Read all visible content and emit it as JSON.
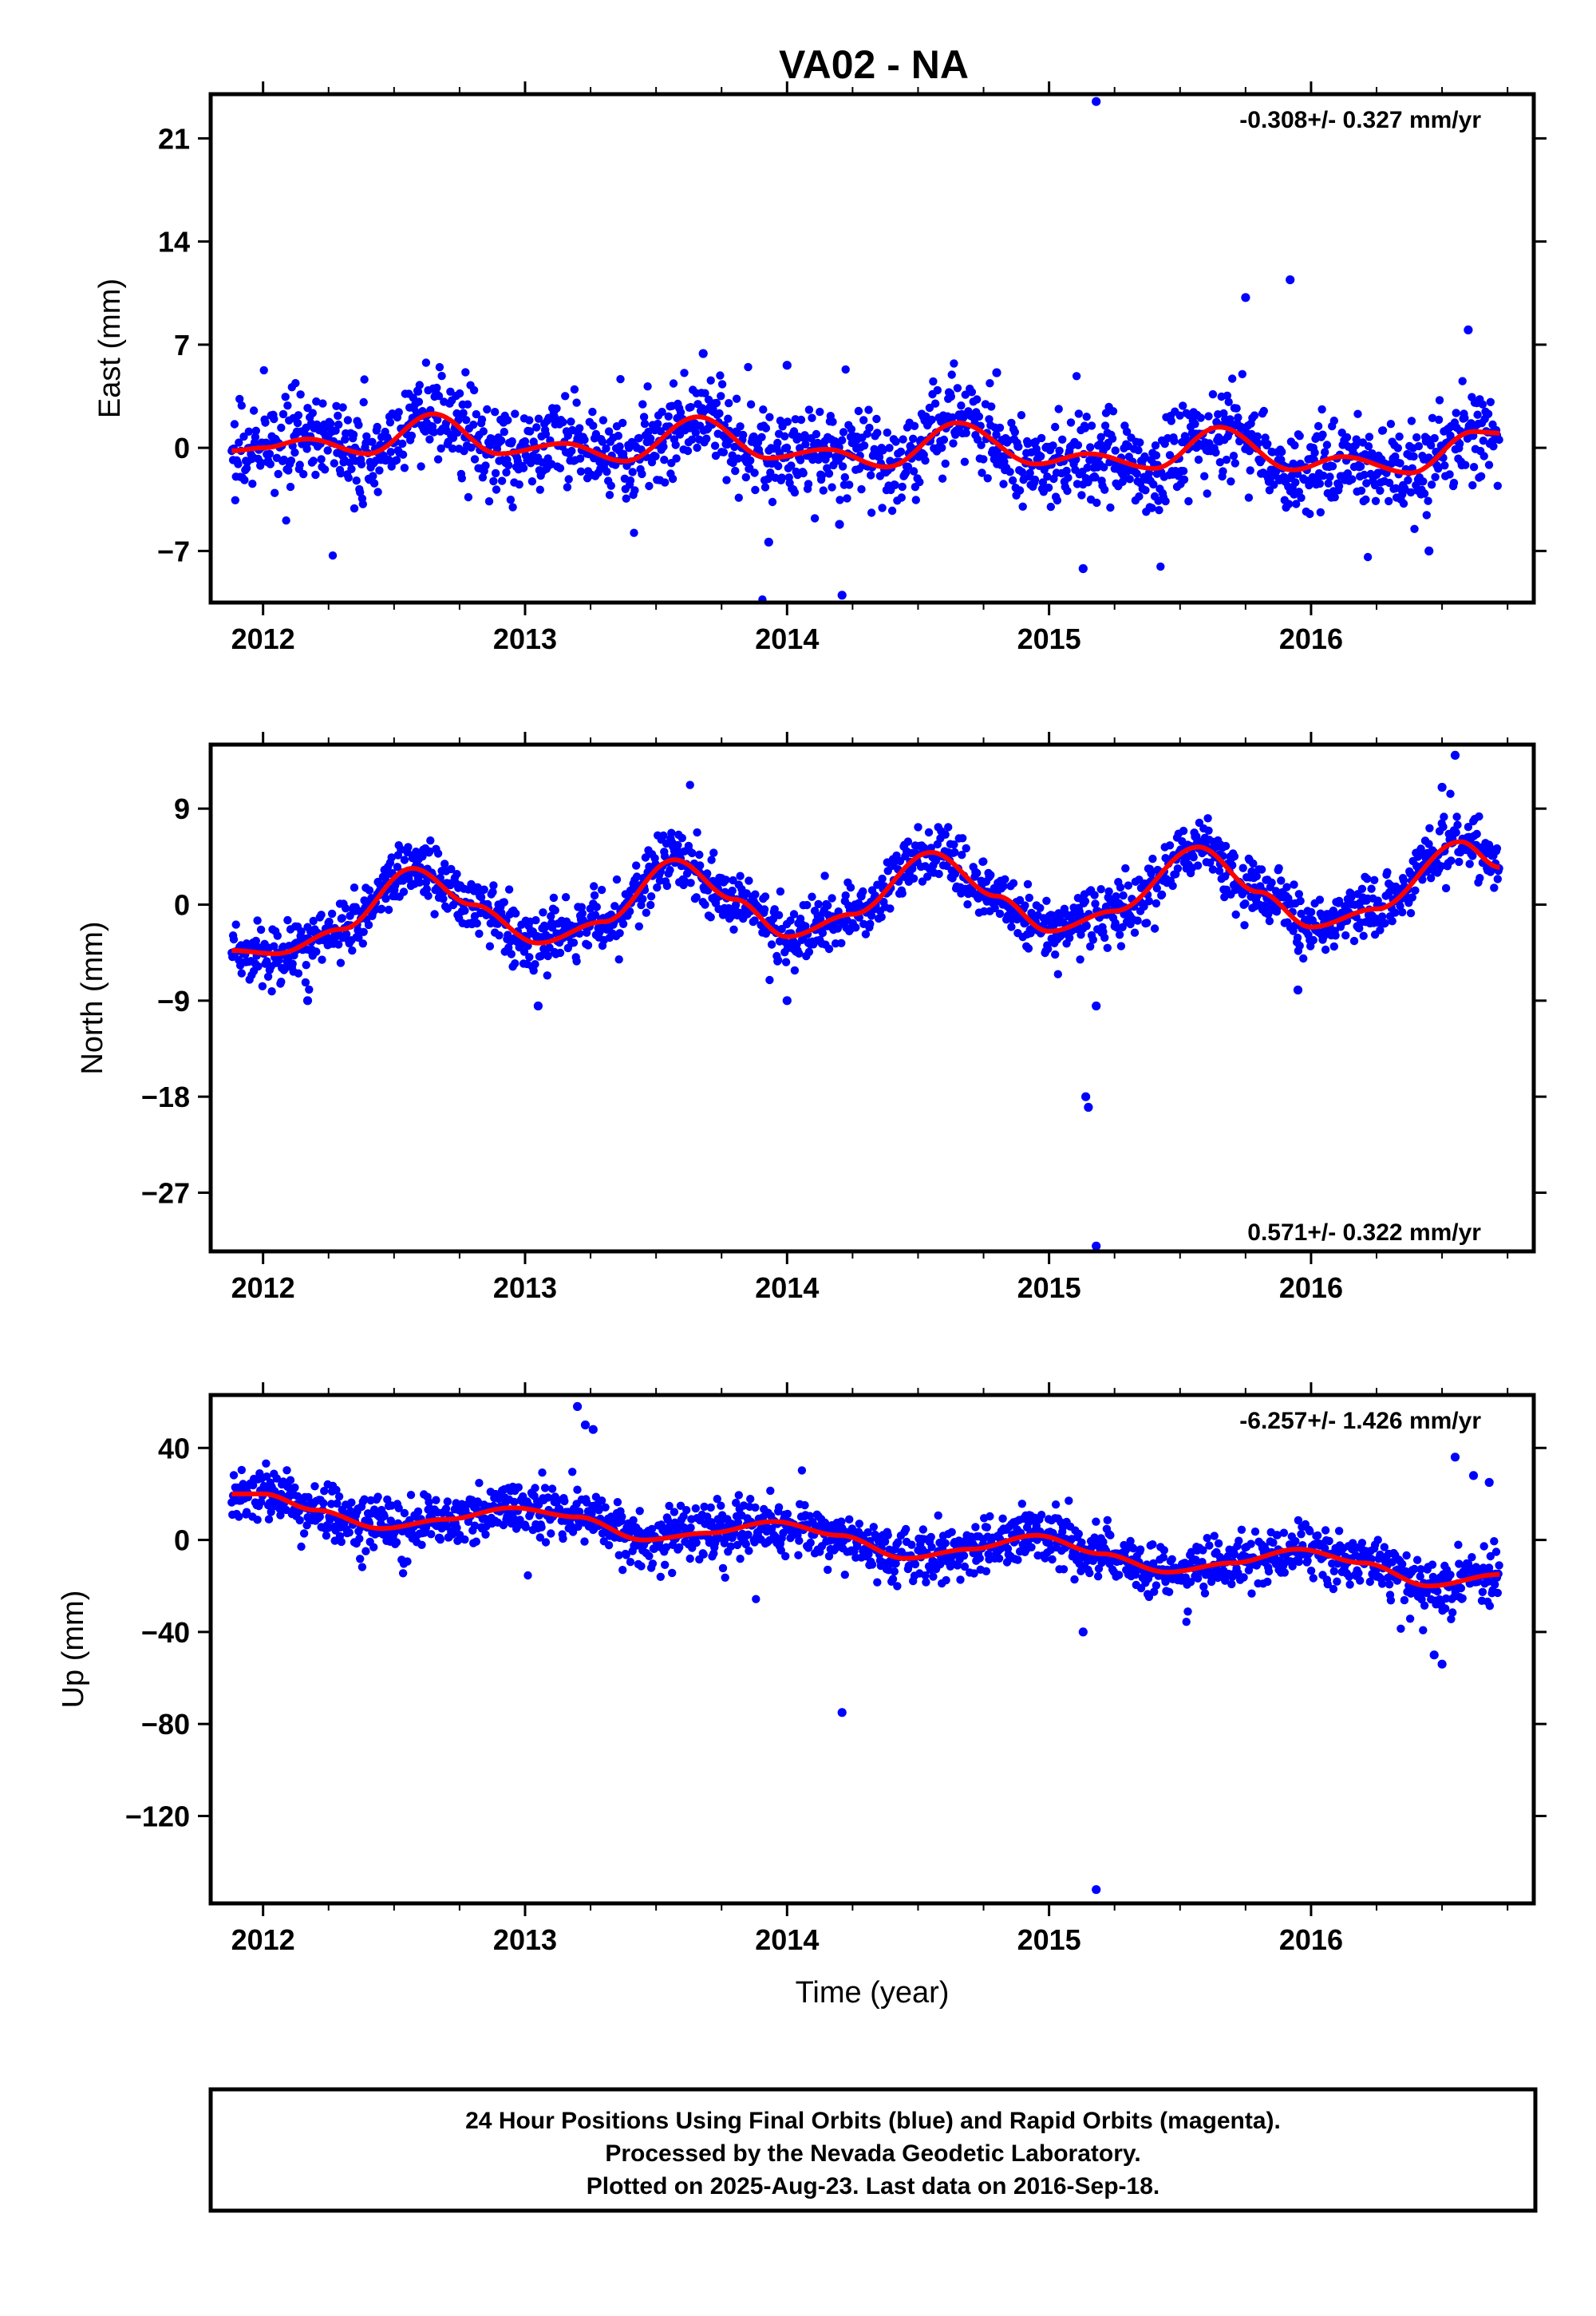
{
  "figure_title": "VA02 - NA",
  "footer": {
    "lines": [
      "24 Hour Positions Using Final Orbits (blue) and Rapid Orbits (magenta).",
      "Processed by the Nevada Geodetic Laboratory.",
      "Plotted on 2025-Aug-23. Last data on 2016-Sep-18."
    ]
  },
  "colors": {
    "final_orbits": "#0000ff",
    "model_fit": "#ff0000",
    "frame": "#000000"
  },
  "chart_data": [
    {
      "type": "scatter",
      "title": "",
      "xlabel": "",
      "ylabel": "East (mm)",
      "rate_text": "-0.308+/- 0.327 mm/yr",
      "rate_position": "top-right",
      "xlim": [
        2011.8,
        2016.85
      ],
      "ylim": [
        -10.5,
        24
      ],
      "xticks": [
        2012,
        2013,
        2014,
        2015,
        2016
      ],
      "xtick_labels": [
        "2012",
        "2013",
        "2014",
        "2015",
        "2016"
      ],
      "yticks": [
        -7,
        0,
        7,
        14,
        21
      ],
      "ytick_labels": [
        "−7",
        "0",
        "7",
        "14",
        "21"
      ],
      "grid": false,
      "data_range": [
        2011.88,
        2016.72
      ],
      "series": [
        {
          "kind": "daily-positions",
          "trend": -0.308,
          "intercept": 0.4,
          "annual_amp": 1.4,
          "annual_phase": 0.3,
          "semi_amp": 0.2,
          "semi_phase": 0.0,
          "noise_sd": 1.5,
          "outliers": [
            [
              2015.18,
              23.5
            ],
            [
              2015.92,
              11.4
            ],
            [
              2015.75,
              10.2
            ],
            [
              2014.21,
              -10.0
            ],
            [
              2015.13,
              -8.2
            ],
            [
              2013.93,
              -6.4
            ],
            [
              2016.45,
              -7.0
            ],
            [
              2014.2,
              -5.2
            ],
            [
              2016.6,
              8.0
            ],
            [
              2014.8,
              5.1
            ],
            [
              2013.68,
              6.4
            ],
            [
              2014.0,
              5.6
            ]
          ]
        },
        {
          "kind": "model-fit",
          "points": [
            [
              2011.88,
              -0.2
            ],
            [
              2012.0,
              0.0
            ],
            [
              2012.17,
              0.6
            ],
            [
              2012.4,
              -0.4
            ],
            [
              2012.65,
              2.3
            ],
            [
              2012.9,
              -0.4
            ],
            [
              2013.15,
              0.3
            ],
            [
              2013.38,
              -0.9
            ],
            [
              2013.66,
              2.1
            ],
            [
              2013.93,
              -0.7
            ],
            [
              2014.15,
              -0.1
            ],
            [
              2014.38,
              -1.3
            ],
            [
              2014.65,
              1.7
            ],
            [
              2014.95,
              -1.1
            ],
            [
              2015.15,
              -0.4
            ],
            [
              2015.4,
              -1.4
            ],
            [
              2015.65,
              1.4
            ],
            [
              2015.93,
              -1.5
            ],
            [
              2016.12,
              -0.6
            ],
            [
              2016.38,
              -1.7
            ],
            [
              2016.62,
              1.1
            ],
            [
              2016.72,
              1.0
            ]
          ]
        }
      ]
    },
    {
      "type": "scatter",
      "title": "",
      "xlabel": "",
      "ylabel": "North (mm)",
      "rate_text": "0.571+/- 0.322 mm/yr",
      "rate_position": "bottom-right",
      "xlim": [
        2011.8,
        2016.85
      ],
      "ylim": [
        -32.5,
        15
      ],
      "xticks": [
        2012,
        2013,
        2014,
        2015,
        2016
      ],
      "xtick_labels": [
        "2012",
        "2013",
        "2014",
        "2015",
        "2016"
      ],
      "yticks": [
        -27,
        -18,
        -9,
        0,
        9
      ],
      "ytick_labels": [
        "−27",
        "−18",
        "−9",
        "0",
        "9"
      ],
      "grid": false,
      "data_range": [
        2011.88,
        2016.72
      ],
      "series": [
        {
          "kind": "daily-positions",
          "trend": 0.571,
          "intercept": -0.8,
          "annual_amp": 4.2,
          "annual_phase": 0.32,
          "semi_amp": 0.0,
          "semi_phase": 0.0,
          "noise_sd": 1.4,
          "outliers": [
            [
              2015.18,
              -32.0
            ],
            [
              2015.14,
              -18.0
            ],
            [
              2015.15,
              -19.0
            ],
            [
              2015.18,
              -9.5
            ],
            [
              2016.55,
              14.0
            ],
            [
              2013.05,
              -9.5
            ],
            [
              2014.0,
              -9.0
            ],
            [
              2012.17,
              -9.0
            ],
            [
              2016.5,
              11.0
            ],
            [
              2015.95,
              -8.0
            ]
          ]
        },
        {
          "kind": "model-fit",
          "points": [
            [
              2011.88,
              -4.3
            ],
            [
              2012.05,
              -4.6
            ],
            [
              2012.3,
              -2.3
            ],
            [
              2012.57,
              3.4
            ],
            [
              2012.8,
              0.0
            ],
            [
              2013.05,
              -3.6
            ],
            [
              2013.3,
              -1.6
            ],
            [
              2013.57,
              4.2
            ],
            [
              2013.8,
              0.5
            ],
            [
              2014.0,
              -3.0
            ],
            [
              2014.25,
              -0.9
            ],
            [
              2014.55,
              4.9
            ],
            [
              2014.8,
              0.8
            ],
            [
              2015.0,
              -2.5
            ],
            [
              2015.25,
              -0.6
            ],
            [
              2015.57,
              5.4
            ],
            [
              2015.8,
              1.2
            ],
            [
              2016.0,
              -2.1
            ],
            [
              2016.25,
              -0.4
            ],
            [
              2016.57,
              5.9
            ],
            [
              2016.72,
              3.5
            ]
          ]
        }
      ]
    },
    {
      "type": "scatter",
      "title": "",
      "xlabel": "Time (year)",
      "ylabel": "Up (mm)",
      "rate_text": "-6.257+/- 1.426 mm/yr",
      "rate_position": "top-right",
      "xlim": [
        2011.8,
        2016.85
      ],
      "ylim": [
        -158,
        63
      ],
      "xticks": [
        2012,
        2013,
        2014,
        2015,
        2016
      ],
      "xtick_labels": [
        "2012",
        "2013",
        "2014",
        "2015",
        "2016"
      ],
      "yticks": [
        -120,
        -80,
        -40,
        0,
        40
      ],
      "ytick_labels": [
        "−120",
        "−80",
        "−40",
        "0",
        "40"
      ],
      "grid": false,
      "data_range": [
        2011.88,
        2016.72
      ],
      "series": [
        {
          "kind": "daily-positions",
          "trend": -6.257,
          "intercept": 1.0,
          "annual_amp": 5.5,
          "annual_phase": 0.95,
          "semi_amp": 2.0,
          "semi_phase": 0.1,
          "noise_sd": 6.0,
          "outliers": [
            [
              2015.18,
              -152.0
            ],
            [
              2014.21,
              -75.0
            ],
            [
              2013.2,
              58.0
            ],
            [
              2013.23,
              50.0
            ],
            [
              2013.26,
              48.0
            ],
            [
              2016.55,
              36.0
            ],
            [
              2016.5,
              -54.0
            ],
            [
              2016.47,
              -50.0
            ],
            [
              2015.13,
              -40.0
            ],
            [
              2016.62,
              28.0
            ],
            [
              2016.68,
              25.0
            ]
          ]
        },
        {
          "kind": "model-fit",
          "points": [
            [
              2011.88,
              20.0
            ],
            [
              2012.0,
              20.0
            ],
            [
              2012.2,
              13.0
            ],
            [
              2012.45,
              5.0
            ],
            [
              2012.7,
              9.0
            ],
            [
              2012.95,
              14.0
            ],
            [
              2013.2,
              10.0
            ],
            [
              2013.45,
              0.0
            ],
            [
              2013.7,
              3.0
            ],
            [
              2013.95,
              8.0
            ],
            [
              2014.2,
              2.0
            ],
            [
              2014.45,
              -8.0
            ],
            [
              2014.7,
              -4.0
            ],
            [
              2014.95,
              2.0
            ],
            [
              2015.2,
              -6.0
            ],
            [
              2015.45,
              -14.0
            ],
            [
              2015.7,
              -10.0
            ],
            [
              2015.95,
              -4.0
            ],
            [
              2016.2,
              -10.0
            ],
            [
              2016.45,
              -20.0
            ],
            [
              2016.72,
              -15.0
            ]
          ]
        }
      ]
    }
  ]
}
